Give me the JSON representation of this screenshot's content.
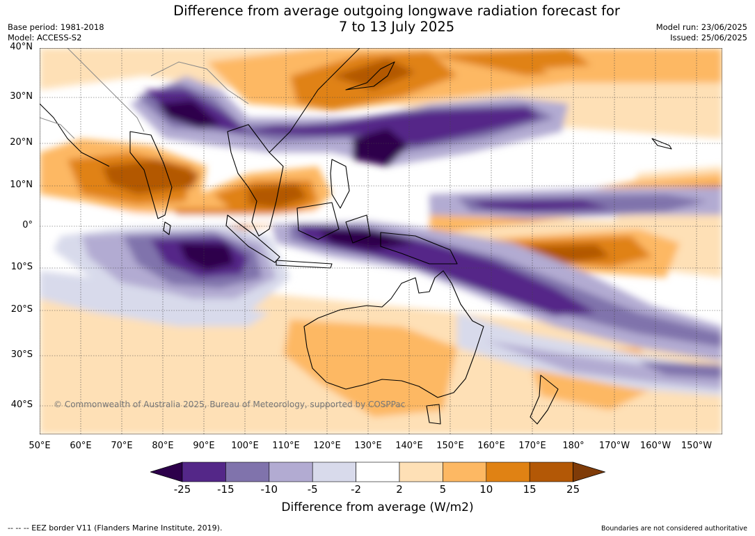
{
  "header": {
    "title_line1": "Difference from average outgoing longwave radiation forecast for",
    "title_line2": "7 to 13 July 2025",
    "base_period": "Base period: 1981-2018",
    "model": "Model: ACCESS-S2",
    "model_run": "Model run: 23/06/2025",
    "issued": "Issued: 25/06/2025"
  },
  "map": {
    "lat_labels": [
      "40°N",
      "30°N",
      "20°N",
      "10°N",
      "0°",
      "10°S",
      "20°S",
      "30°S",
      "40°S"
    ],
    "lon_labels": [
      "50°E",
      "60°E",
      "70°E",
      "80°E",
      "90°E",
      "100°E",
      "110°E",
      "120°E",
      "130°E",
      "140°E",
      "150°E",
      "160°E",
      "170°E",
      "180°",
      "170°W",
      "160°W",
      "150°W"
    ],
    "copyright": "© Commonwealth of Australia 2025, Bureau of Meteorology, supported by COSPPac"
  },
  "legend": {
    "ticks": [
      "-25",
      "-15",
      "-10",
      "-5",
      "-2",
      "2",
      "5",
      "10",
      "15",
      "25"
    ],
    "colors": {
      "below_-25": "#2d004b",
      "-25_-15": "#542788",
      "-15_-10": "#8073ac",
      "-10_-5": "#b2abd2",
      "-5_-2": "#d8daeb",
      "-2_2": "#ffffff",
      "2_5": "#fee0b6",
      "5_10": "#fdb863",
      "10_15": "#e08214",
      "15_25": "#b35806",
      "above_25": "#7f3b08"
    },
    "label": "Difference from average (W/m2)"
  },
  "footer": {
    "eez_note": "--  --  -- EEZ border V11 (Flanders Marine Institute, 2019).",
    "disclaimer": "Boundaries are not considered authoritative"
  }
}
